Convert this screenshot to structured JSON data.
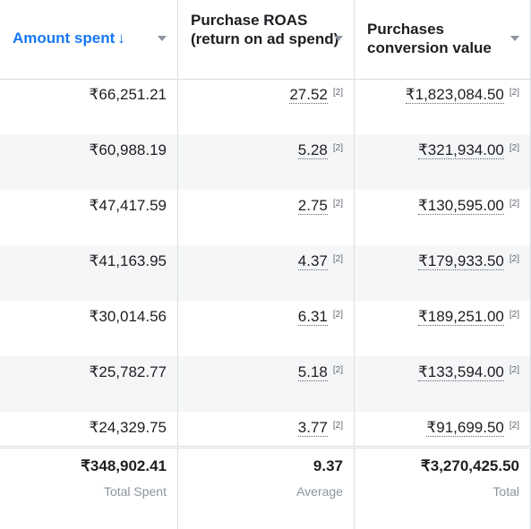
{
  "header": {
    "col1": {
      "label": "Amount spent",
      "sort_icon": "↓"
    },
    "col2": {
      "label": "Purchase ROAS (return on ad spend)"
    },
    "col3": {
      "label": "Purchases conversion value"
    }
  },
  "rows": [
    {
      "amount": "₹66,251.21",
      "roas": "27.52",
      "roas_note": "[2]",
      "value": "₹1,823,084.50",
      "value_note": "[2]"
    },
    {
      "amount": "₹60,988.19",
      "roas": "5.28",
      "roas_note": "[2]",
      "value": "₹321,934.00",
      "value_note": "[2]"
    },
    {
      "amount": "₹47,417.59",
      "roas": "2.75",
      "roas_note": "[2]",
      "value": "₹130,595.00",
      "value_note": "[2]"
    },
    {
      "amount": "₹41,163.95",
      "roas": "4.37",
      "roas_note": "[2]",
      "value": "₹179,933.50",
      "value_note": "[2]"
    },
    {
      "amount": "₹30,014.56",
      "roas": "6.31",
      "roas_note": "[2]",
      "value": "₹189,251.00",
      "value_note": "[2]"
    },
    {
      "amount": "₹25,782.77",
      "roas": "5.18",
      "roas_note": "[2]",
      "value": "₹133,594.00",
      "value_note": "[2]"
    },
    {
      "amount": "₹24,329.75",
      "roas": "3.77",
      "roas_note": "[2]",
      "value": "₹91,699.50",
      "value_note": "[2]"
    }
  ],
  "totals": {
    "amount": "₹348,902.41",
    "amount_label": "Total Spent",
    "roas": "9.37",
    "roas_label": "Average",
    "value": "₹3,270,425.50",
    "value_label": "Total"
  },
  "colors": {
    "accent": "#1877f2",
    "border": "#dadde1",
    "alt_row": "#f5f6f7",
    "muted": "#8d949e"
  }
}
